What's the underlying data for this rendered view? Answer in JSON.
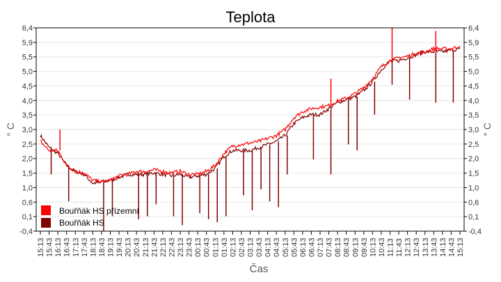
{
  "chart_data": {
    "type": "line",
    "title": "Teplota",
    "xlabel": "Čas",
    "ylabel": "° C",
    "ylim": [
      -0.4,
      6.4
    ],
    "y_ticks": [
      "6,4",
      "5,9",
      "5,5",
      "5,0",
      "4,5",
      "4,0",
      "3,5",
      "3,0",
      "2,5",
      "2,0",
      "1,5",
      "1,0",
      "0,6",
      "0,1",
      "-0,4"
    ],
    "grid": true,
    "legend_placement": "bottom-left",
    "x": [
      "15:13",
      "15:43",
      "16:13",
      "16:43",
      "17:13",
      "17:43",
      "18:13",
      "18:43",
      "19:13",
      "19:43",
      "20:13",
      "20:43",
      "21:13",
      "21:43",
      "22:13",
      "22:43",
      "23:13",
      "23:43",
      "00:13",
      "00:43",
      "01:13",
      "01:43",
      "02:13",
      "02:43",
      "03:13",
      "03:43",
      "04:13",
      "04:43",
      "05:13",
      "05:43",
      "06:13",
      "06:43",
      "07:13",
      "07:43",
      "08:13",
      "08:43",
      "09:13",
      "09:43",
      "10:13",
      "10:43",
      "11:13",
      "11:43",
      "12:13",
      "12:43",
      "13:13",
      "13:43",
      "14:13",
      "14:43",
      "15:13"
    ],
    "series": [
      {
        "name": "Bouřňák HS přízemní",
        "color": "#ff0000",
        "values": [
          2.6,
          2.3,
          2.3,
          1.8,
          1.6,
          1.55,
          1.3,
          1.25,
          1.3,
          1.45,
          1.5,
          1.6,
          1.6,
          1.65,
          1.6,
          1.55,
          1.6,
          1.5,
          1.5,
          1.6,
          1.8,
          2.2,
          2.45,
          2.5,
          2.55,
          2.6,
          2.7,
          2.8,
          3.0,
          3.4,
          3.6,
          3.7,
          3.75,
          3.8,
          3.95,
          4.05,
          4.2,
          4.4,
          4.7,
          5.1,
          5.3,
          5.4,
          5.45,
          5.55,
          5.6,
          5.7,
          5.7,
          5.7,
          5.8
        ],
        "spikes": [
          [
            "16:13",
            3.0
          ],
          [
            "07:43",
            4.7
          ],
          [
            "11:13",
            6.4
          ],
          [
            "13:43",
            6.3
          ]
        ]
      },
      {
        "name": "Bouřňák HS",
        "color": "#800000",
        "values": [
          2.8,
          2.4,
          2.2,
          1.8,
          1.6,
          1.5,
          1.2,
          1.25,
          1.3,
          1.4,
          1.5,
          1.5,
          1.5,
          1.55,
          1.5,
          1.45,
          1.5,
          1.4,
          1.45,
          1.5,
          1.7,
          2.1,
          2.3,
          2.3,
          2.3,
          2.4,
          2.5,
          2.6,
          2.8,
          3.2,
          3.4,
          3.5,
          3.5,
          3.7,
          3.9,
          4.0,
          4.1,
          4.3,
          4.6,
          5.0,
          5.3,
          5.3,
          5.4,
          5.5,
          5.6,
          5.6,
          5.6,
          5.65,
          5.7
        ],
        "spikes": [
          [
            "15:43",
            1.5
          ],
          [
            "16:43",
            0.6
          ],
          [
            "18:43",
            -0.4
          ],
          [
            "19:13",
            0.1
          ],
          [
            "20:43",
            0.0
          ],
          [
            "21:13",
            0.1
          ],
          [
            "21:43",
            0.5
          ],
          [
            "22:43",
            0.1
          ],
          [
            "23:13",
            -0.2
          ],
          [
            "00:13",
            0.2
          ],
          [
            "00:43",
            0.0
          ],
          [
            "01:13",
            -0.1
          ],
          [
            "01:43",
            0.1
          ],
          [
            "02:43",
            0.8
          ],
          [
            "03:13",
            0.3
          ],
          [
            "03:43",
            1.0
          ],
          [
            "04:13",
            0.6
          ],
          [
            "04:43",
            0.4
          ],
          [
            "05:13",
            1.5
          ],
          [
            "06:43",
            2.0
          ],
          [
            "07:43",
            1.5
          ],
          [
            "08:43",
            2.5
          ],
          [
            "09:13",
            2.3
          ],
          [
            "10:13",
            3.5
          ],
          [
            "11:13",
            4.5
          ],
          [
            "12:13",
            4.0
          ],
          [
            "13:43",
            3.9
          ],
          [
            "14:43",
            3.9
          ]
        ]
      }
    ]
  }
}
